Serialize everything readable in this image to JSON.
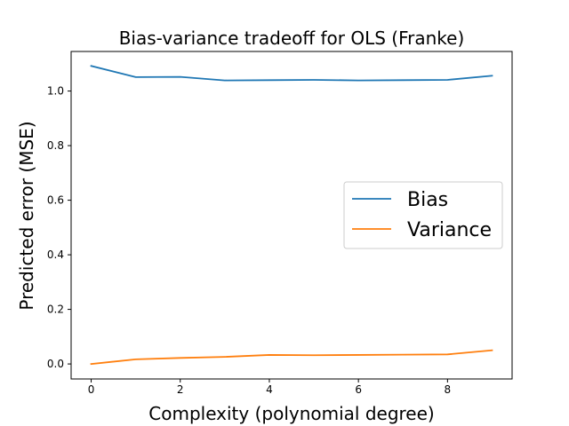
{
  "chart_data": {
    "type": "line",
    "title": "Bias-variance tradeoff for OLS (Franke)",
    "xlabel": "Complexity (polynomial degree)",
    "ylabel": "Predicted error (MSE)",
    "x": [
      0,
      1,
      2,
      3,
      4,
      5,
      6,
      7,
      8,
      9
    ],
    "xlim": [
      -0.45,
      9.45
    ],
    "ylim": [
      -0.055,
      1.145
    ],
    "xticks": [
      0,
      2,
      4,
      6,
      8
    ],
    "yticks": [
      0.0,
      0.2,
      0.4,
      0.6,
      0.8,
      1.0
    ],
    "xtick_labels": [
      "0",
      "2",
      "4",
      "6",
      "8"
    ],
    "ytick_labels": [
      "0.0",
      "0.2",
      "0.4",
      "0.6",
      "0.8",
      "1.0"
    ],
    "grid": false,
    "legend_position": "center-right",
    "series": [
      {
        "name": "Bias",
        "color": "#1f77b4",
        "values": [
          1.092,
          1.051,
          1.052,
          1.039,
          1.04,
          1.041,
          1.039,
          1.04,
          1.041,
          1.056
        ]
      },
      {
        "name": "Variance",
        "color": "#ff7f0e",
        "values": [
          0.0,
          0.017,
          0.022,
          0.026,
          0.033,
          0.032,
          0.033,
          0.034,
          0.035,
          0.05
        ]
      }
    ]
  }
}
